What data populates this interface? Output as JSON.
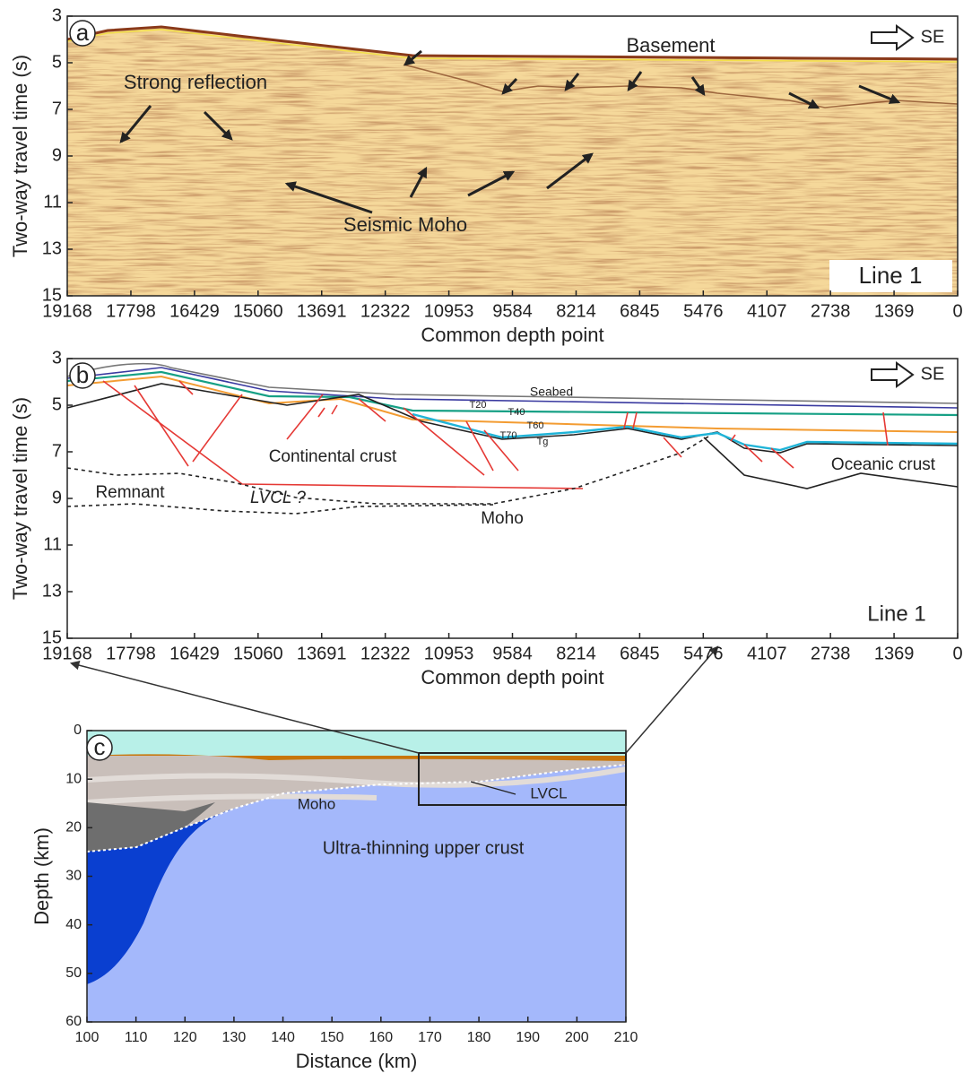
{
  "chart_data": [
    {
      "type": "seismic-section",
      "panel_label": "a",
      "xlabel": "Common depth point",
      "ylabel": "Two-way travel time (s)",
      "xlim": [
        19168,
        0
      ],
      "ylim": [
        3,
        15
      ],
      "y_inverted": true,
      "xticks": [
        19168,
        17798,
        16429,
        15060,
        13691,
        12322,
        10953,
        9584,
        8214,
        6845,
        5476,
        4107,
        2738,
        1369,
        0
      ],
      "yticks": [
        3,
        5,
        7,
        9,
        11,
        13,
        15
      ],
      "annotations": [
        "Basement",
        "Strong reflection",
        "Seismic Moho",
        "SE",
        "Line 1"
      ]
    },
    {
      "type": "interpretation",
      "panel_label": "b",
      "xlabel": "Common depth point",
      "ylabel": "Two-way travel time (s)",
      "xlim": [
        19168,
        0
      ],
      "ylim": [
        3,
        15
      ],
      "y_inverted": true,
      "xticks": [
        19168,
        17798,
        16429,
        15060,
        13691,
        12322,
        10953,
        9584,
        8214,
        6845,
        5476,
        4107,
        2738,
        1369,
        0
      ],
      "yticks": [
        3,
        5,
        7,
        9,
        11,
        13,
        15
      ],
      "annotations": [
        "Seabed",
        "T20",
        "T40",
        "T60",
        "T70",
        "Tg",
        "Continental crust",
        "Oceanic crust",
        "Remnant",
        "LVCL ?",
        "Moho",
        "SE",
        "Line 1"
      ]
    },
    {
      "type": "model",
      "panel_label": "c",
      "xlabel": "Distance (km)",
      "ylabel": "Depth (km)",
      "xlim": [
        100,
        210
      ],
      "ylim": [
        0,
        60
      ],
      "y_inverted": true,
      "xticks": [
        100,
        110,
        120,
        130,
        140,
        150,
        160,
        170,
        180,
        190,
        200,
        210
      ],
      "yticks": [
        0,
        10,
        20,
        30,
        40,
        50,
        60
      ],
      "annotations": [
        "Moho",
        "LVCL",
        "Ultra-thinning upper crust"
      ]
    }
  ]
}
